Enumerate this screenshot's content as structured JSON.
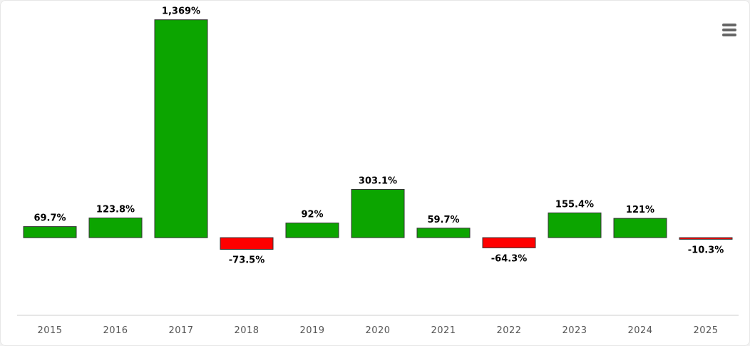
{
  "menu": {
    "icon": "hamburger-menu-icon"
  },
  "chart_data": {
    "type": "bar",
    "title": "",
    "xlabel": "",
    "ylabel": "",
    "categories": [
      "2015",
      "2016",
      "2017",
      "2018",
      "2019",
      "2020",
      "2021",
      "2022",
      "2023",
      "2024",
      "2025"
    ],
    "values": [
      69.7,
      123.8,
      1369,
      -73.5,
      92,
      303.1,
      59.7,
      -64.3,
      155.4,
      121,
      -10.3
    ],
    "data_labels": [
      "69.7%",
      "123.8%",
      "1,369%",
      "-73.5%",
      "92%",
      "303.1%",
      "59.7%",
      "-64.3%",
      "155.4%",
      "121%",
      "-10.3%"
    ],
    "ylim": [
      -488,
      1475
    ],
    "grid": false,
    "legend": "none",
    "colors": {
      "positive": "#0ca500",
      "negative": "#ff0000",
      "outline": "#333333",
      "axis": "#cccccc"
    }
  }
}
